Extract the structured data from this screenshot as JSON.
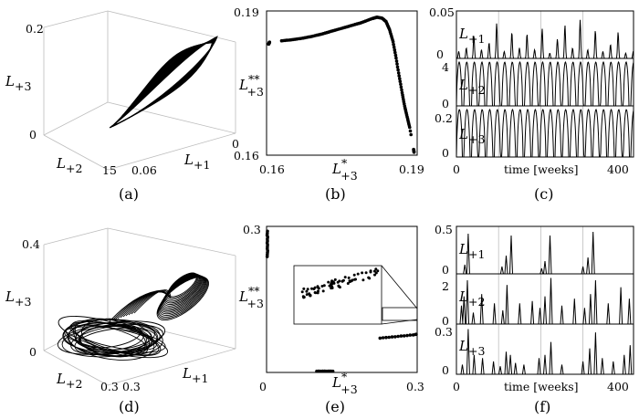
{
  "captions": [
    "(a)",
    "(b)",
    "(c)",
    "(d)",
    "(e)",
    "(f)"
  ],
  "symbols": {
    "L1": "L",
    "L1_sub": "+1",
    "L2": "L",
    "L2_sub": "+2",
    "L3": "L",
    "L3_sub": "+3",
    "Lstar": "L",
    "Lstar_sup": "*",
    "Lstar_sub": "+3",
    "Lss": "L",
    "Lss_sup": "**",
    "Lss_sub": "+3",
    "time_label": "time [weeks]"
  },
  "chart_data": [
    {
      "panel": "a",
      "type": "line",
      "projection": "3d",
      "z_ticks": [
        "0",
        "0.2"
      ],
      "x_ticks": [
        "15"
      ],
      "y_ticks": [
        "0.06",
        "0"
      ],
      "zlim": [
        0,
        0.2
      ],
      "xlim": [
        0,
        15
      ],
      "ylim": [
        0,
        0.06
      ],
      "description_free": true
    },
    {
      "panel": "b",
      "type": "scatter",
      "xlim": [
        0.16,
        0.19
      ],
      "ylim": [
        0.16,
        0.19
      ],
      "x_ticks": [
        "0.16",
        "0.19"
      ],
      "y_ticks": [
        "0.16",
        "0.19"
      ],
      "x": [
        0.1604,
        0.1605,
        0.1606,
        0.163,
        0.165,
        0.167,
        0.169,
        0.171,
        0.173,
        0.175,
        0.177,
        0.179,
        0.181,
        0.182,
        0.183,
        0.1838,
        0.1845,
        0.1852,
        0.1858,
        0.1864,
        0.187,
        0.1875,
        0.188,
        0.1885,
        0.1893,
        0.1894
      ],
      "y": [
        0.1831,
        0.1833,
        0.1835,
        0.1838,
        0.184,
        0.1843,
        0.1847,
        0.1852,
        0.1858,
        0.1864,
        0.187,
        0.1876,
        0.1884,
        0.1887,
        0.1885,
        0.1878,
        0.1861,
        0.1836,
        0.1802,
        0.1765,
        0.173,
        0.1702,
        0.168,
        0.1658,
        0.1612,
        0.1605
      ]
    },
    {
      "panel": "c",
      "type": "line",
      "subplots": 3,
      "x_ticks": [
        "0",
        "400"
      ],
      "xlim": [
        0,
        420
      ],
      "rows": [
        {
          "y_ticks": [
            "0",
            "0.05"
          ],
          "ylim": [
            0,
            0.05
          ],
          "peaks": [
            0.008,
            0.012,
            0.026,
            0.01,
            0.018,
            0.04,
            0.008,
            0.03,
            0.012,
            0.028,
            0.01,
            0.034,
            0.006,
            0.022,
            0.038,
            0.012,
            0.044,
            0.01,
            0.032,
            0.008,
            0.016,
            0.03,
            0.006
          ]
        },
        {
          "y_ticks": [
            "0",
            "4"
          ],
          "ylim": [
            0,
            4.2
          ]
        },
        {
          "y_ticks": [
            "0",
            "0.2"
          ],
          "ylim": [
            0,
            0.22
          ]
        }
      ]
    },
    {
      "panel": "d",
      "type": "line",
      "projection": "3d",
      "z_ticks": [
        "0",
        "0.4"
      ],
      "x_ticks": [
        "0.3"
      ],
      "y_ticks": [
        "0.3"
      ],
      "zlim": [
        0,
        0.4
      ],
      "xlim": [
        0,
        0.3
      ],
      "ylim": [
        0,
        0.3
      ]
    },
    {
      "panel": "e",
      "type": "scatter",
      "xlim": [
        0,
        0.3
      ],
      "ylim": [
        0,
        0.3
      ],
      "x_ticks": [
        "0",
        "0.3"
      ],
      "y_ticks": [
        "0.3"
      ],
      "x": [
        0.0012,
        0.0015,
        0.0018,
        0.0021,
        0.0014,
        0.0017,
        0.002,
        0.0013,
        0.0019,
        0.0016,
        0.0022,
        0.0011,
        0.0015,
        0.0018,
        0.1,
        0.104,
        0.108,
        0.112,
        0.116,
        0.12,
        0.124,
        0.128,
        0.132,
        0.226,
        0.232,
        0.238,
        0.244,
        0.25,
        0.256,
        0.262,
        0.268,
        0.274,
        0.28,
        0.286,
        0.292,
        0.296,
        0.298
      ],
      "y": [
        0.238,
        0.242,
        0.246,
        0.25,
        0.254,
        0.258,
        0.262,
        0.266,
        0.27,
        0.274,
        0.278,
        0.282,
        0.286,
        0.29,
        0.0025,
        0.0026,
        0.0025,
        0.0027,
        0.0026,
        0.0025,
        0.0026,
        0.0027,
        0.0025,
        0.0705,
        0.0712,
        0.0718,
        0.0722,
        0.0729,
        0.0733,
        0.0741,
        0.0748,
        0.0752,
        0.0758,
        0.0766,
        0.0771,
        0.0779,
        0.0783
      ]
    },
    {
      "panel": "f",
      "type": "line",
      "subplots": 3,
      "x_ticks": [
        "0",
        "400"
      ],
      "xlim": [
        0,
        420
      ],
      "rows": [
        {
          "y_ticks": [
            "0",
            "0.5"
          ],
          "ylim": [
            0,
            0.5
          ],
          "spikes": [
            [
              20,
              0.1
            ],
            [
              28,
              0.44
            ],
            [
              108,
              0.08
            ],
            [
              118,
              0.2
            ],
            [
              130,
              0.42
            ],
            [
              202,
              0.06
            ],
            [
              210,
              0.14
            ],
            [
              222,
              0.42
            ],
            [
              300,
              0.08
            ],
            [
              312,
              0.18
            ],
            [
              324,
              0.46
            ]
          ]
        },
        {
          "y_ticks": [
            "0",
            "2"
          ],
          "ylim": [
            0,
            2.1
          ],
          "spikes": [
            [
              12,
              0.8
            ],
            [
              18,
              1.2
            ],
            [
              26,
              1.9
            ],
            [
              40,
              0.5
            ],
            [
              60,
              1.3
            ],
            [
              90,
              0.9
            ],
            [
              110,
              0.6
            ],
            [
              120,
              1.7
            ],
            [
              150,
              0.9
            ],
            [
              180,
              1.0
            ],
            [
              198,
              0.7
            ],
            [
              210,
              1.2
            ],
            [
              224,
              2.0
            ],
            [
              250,
              0.8
            ],
            [
              280,
              1.1
            ],
            [
              304,
              0.7
            ],
            [
              318,
              1.3
            ],
            [
              330,
              1.9
            ],
            [
              360,
              0.9
            ],
            [
              390,
              1.6
            ],
            [
              410,
              1.1
            ]
          ]
        },
        {
          "y_ticks": [
            "0",
            "0.3"
          ],
          "ylim": [
            0,
            0.3
          ],
          "spikes": [
            [
              14,
              0.06
            ],
            [
              28,
              0.28
            ],
            [
              42,
              0.12
            ],
            [
              62,
              0.1
            ],
            [
              88,
              0.08
            ],
            [
              104,
              0.05
            ],
            [
              118,
              0.14
            ],
            [
              128,
              0.12
            ],
            [
              140,
              0.07
            ],
            [
              160,
              0.06
            ],
            [
              196,
              0.1
            ],
            [
              210,
              0.12
            ],
            [
              224,
              0.2
            ],
            [
              250,
              0.06
            ],
            [
              300,
              0.08
            ],
            [
              316,
              0.16
            ],
            [
              330,
              0.26
            ],
            [
              346,
              0.1
            ],
            [
              372,
              0.08
            ],
            [
              398,
              0.12
            ],
            [
              412,
              0.18
            ]
          ]
        }
      ]
    }
  ]
}
